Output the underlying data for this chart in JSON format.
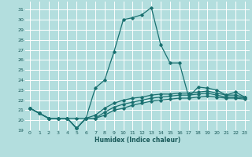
{
  "title": "",
  "xlabel": "Humidex (Indice chaleur)",
  "ylabel": "",
  "background_color": "#b3dede",
  "grid_color": "#ffffff",
  "line_color": "#1a7070",
  "xlim": [
    -0.5,
    23.5
  ],
  "ylim": [
    19,
    31.8
  ],
  "xticks": [
    0,
    1,
    2,
    3,
    4,
    5,
    6,
    7,
    8,
    9,
    10,
    11,
    12,
    13,
    14,
    15,
    16,
    17,
    18,
    19,
    20,
    21,
    22,
    23
  ],
  "yticks": [
    19,
    20,
    21,
    22,
    23,
    24,
    25,
    26,
    27,
    28,
    29,
    30,
    31
  ],
  "lines": [
    [
      21.2,
      20.7,
      20.2,
      20.2,
      20.2,
      20.2,
      20.2,
      23.2,
      24.0,
      26.8,
      30.0,
      30.2,
      30.5,
      31.2,
      27.5,
      25.7,
      25.7,
      22.3,
      23.3,
      23.2,
      23.0,
      22.5,
      22.8,
      22.3
    ],
    [
      21.2,
      20.7,
      20.2,
      20.2,
      20.2,
      19.2,
      20.2,
      20.5,
      21.2,
      21.7,
      22.0,
      22.2,
      22.3,
      22.5,
      22.6,
      22.6,
      22.7,
      22.7,
      22.8,
      22.9,
      22.7,
      22.5,
      22.5,
      22.3
    ],
    [
      21.2,
      20.7,
      20.2,
      20.2,
      20.2,
      19.2,
      20.2,
      20.2,
      20.8,
      21.3,
      21.6,
      21.8,
      22.0,
      22.2,
      22.3,
      22.4,
      22.5,
      22.5,
      22.6,
      22.7,
      22.5,
      22.3,
      22.3,
      22.2
    ],
    [
      21.2,
      20.7,
      20.2,
      20.2,
      20.2,
      19.2,
      20.2,
      20.2,
      20.5,
      21.0,
      21.2,
      21.5,
      21.7,
      21.9,
      22.0,
      22.1,
      22.2,
      22.2,
      22.3,
      22.4,
      22.3,
      22.2,
      22.2,
      22.1
    ]
  ]
}
